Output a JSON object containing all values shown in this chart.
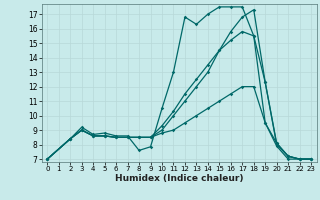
{
  "xlabel": "Humidex (Indice chaleur)",
  "bg_color": "#c8eaea",
  "grid_color": "#b8d8d8",
  "line_color": "#006868",
  "xlim": [
    -0.5,
    23.5
  ],
  "ylim": [
    6.8,
    17.7
  ],
  "yticks": [
    7,
    8,
    9,
    10,
    11,
    12,
    13,
    14,
    15,
    16,
    17
  ],
  "xticks": [
    0,
    1,
    2,
    3,
    4,
    5,
    6,
    7,
    8,
    9,
    10,
    11,
    12,
    13,
    14,
    15,
    16,
    17,
    18,
    19,
    20,
    21,
    22,
    23
  ],
  "lines": [
    {
      "x": [
        0,
        2,
        3,
        4,
        5,
        6,
        7,
        8,
        9,
        10,
        11,
        12,
        13,
        14,
        15,
        16,
        17,
        18,
        19,
        20,
        21,
        22,
        23
      ],
      "y": [
        7.0,
        8.4,
        9.2,
        8.7,
        8.8,
        8.6,
        8.6,
        7.6,
        7.85,
        10.5,
        13.0,
        16.8,
        16.3,
        17.0,
        17.5,
        17.5,
        17.5,
        15.5,
        9.5,
        8.1,
        7.2,
        7.0,
        7.0
      ]
    },
    {
      "x": [
        0,
        2,
        3,
        4,
        5,
        6,
        7,
        8,
        9,
        10,
        11,
        12,
        13,
        14,
        15,
        16,
        17,
        18,
        19,
        20,
        21,
        22,
        23
      ],
      "y": [
        7.0,
        8.4,
        9.0,
        8.6,
        8.6,
        8.5,
        8.5,
        8.5,
        8.5,
        9.0,
        10.0,
        11.0,
        12.0,
        13.0,
        14.5,
        15.8,
        16.8,
        17.3,
        12.3,
        8.1,
        7.2,
        7.0,
        7.0
      ]
    },
    {
      "x": [
        0,
        2,
        3,
        4,
        5,
        6,
        7,
        8,
        9,
        10,
        11,
        12,
        13,
        14,
        15,
        16,
        17,
        18,
        19,
        20,
        21,
        22,
        23
      ],
      "y": [
        7.0,
        8.4,
        9.0,
        8.6,
        8.6,
        8.5,
        8.5,
        8.5,
        8.5,
        9.3,
        10.3,
        11.5,
        12.5,
        13.5,
        14.5,
        15.2,
        15.8,
        15.5,
        12.3,
        8.0,
        7.2,
        7.0,
        7.0
      ]
    },
    {
      "x": [
        0,
        2,
        3,
        4,
        5,
        6,
        7,
        8,
        9,
        10,
        11,
        12,
        13,
        14,
        15,
        16,
        17,
        18,
        19,
        20,
        21,
        22,
        23
      ],
      "y": [
        7.0,
        8.4,
        9.0,
        8.6,
        8.6,
        8.5,
        8.5,
        8.5,
        8.5,
        8.8,
        9.0,
        9.5,
        10.0,
        10.5,
        11.0,
        11.5,
        12.0,
        12.0,
        9.5,
        7.9,
        7.0,
        7.0,
        7.0
      ]
    }
  ]
}
